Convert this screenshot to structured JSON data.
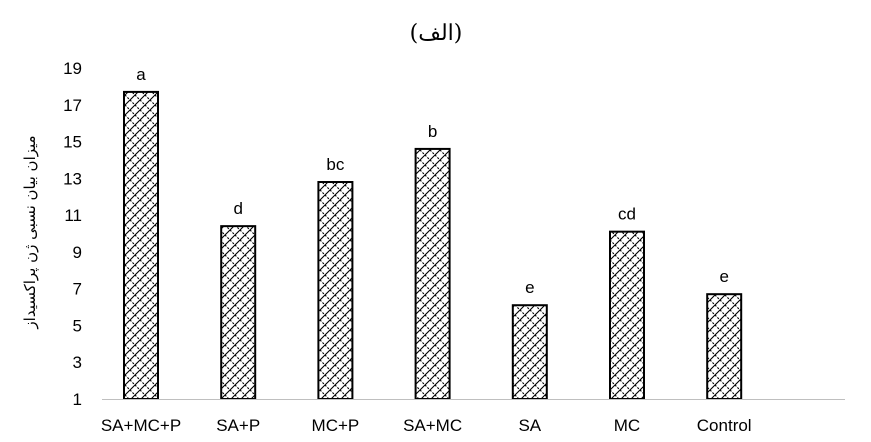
{
  "chart_data": {
    "type": "bar",
    "title": "(الف)",
    "ylabel": "میزان بیان نسبی ژن پراکسیداز",
    "xlabel": "",
    "categories": [
      "SA+MC+P",
      "SA+P",
      "MC+P",
      "SA+MC",
      "SA",
      "MC",
      "Control"
    ],
    "values": [
      17.7,
      10.4,
      12.8,
      14.6,
      6.1,
      10.1,
      6.7
    ],
    "data_labels": [
      "a",
      "d",
      "bc",
      "b",
      "e",
      "cd",
      "e"
    ],
    "ylim": [
      1,
      19
    ],
    "yticks": [
      1,
      3,
      5,
      7,
      9,
      11,
      13,
      15,
      17,
      19
    ],
    "grid": false,
    "legend": "none",
    "bar_fill": "crosshatch",
    "colors": {
      "bar_stroke": "#000000",
      "axis": "#bfbfbf",
      "text": "#000000"
    }
  }
}
